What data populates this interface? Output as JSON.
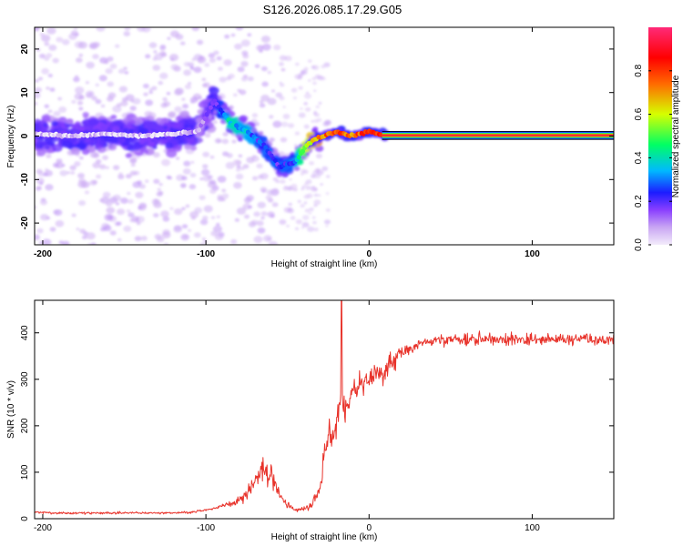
{
  "page_title": "S126.2026.085.17.29.G05",
  "chart_data": [
    {
      "type": "heatmap",
      "xlabel": "Height of straight line (km)",
      "ylabel": "Frequency (Hz)",
      "xlim": [
        -205,
        150
      ],
      "ylim": [
        -25,
        25
      ],
      "xticks": [
        -200,
        -100,
        0,
        100
      ],
      "xtick_labels": [
        "-200",
        "-100",
        "0",
        "100"
      ],
      "yticks": [
        -20,
        -10,
        0,
        10,
        20
      ],
      "ytick_labels": [
        "-20",
        "-10",
        "0",
        "10",
        "20"
      ],
      "colorbar": {
        "label": "Normalized spectral amplitude",
        "range": [
          0,
          1
        ],
        "ticks": [
          0.0,
          0.2,
          0.4,
          0.6,
          0.8
        ],
        "tick_labels": [
          "0.0",
          "0.2",
          "0.4",
          "0.6",
          "0.8"
        ],
        "colors": [
          "#f3ecfb",
          "#c9a6f3",
          "#8a3fff",
          "#1c1cff",
          "#00b9ff",
          "#00ff64",
          "#d6ff00",
          "#ff6a00",
          "#ff0000",
          "#ff2a78"
        ]
      },
      "ridge": {
        "x": [
          -205,
          -180,
          -160,
          -140,
          -120,
          -105,
          -95,
          -85,
          -75,
          -65,
          -55,
          -45,
          -40,
          -35,
          -28,
          -20,
          -10,
          0,
          10,
          50,
          100,
          150
        ],
        "y": [
          0.5,
          0,
          0.5,
          0,
          0.5,
          1,
          8,
          3,
          1,
          -2,
          -7,
          -6,
          -3,
          -1,
          0,
          1,
          0,
          1,
          0.2,
          0.1,
          0.1,
          0.1
        ],
        "amplitude": [
          0.1,
          0.1,
          0.1,
          0.1,
          0.1,
          0.15,
          0.25,
          0.45,
          0.4,
          0.3,
          0.3,
          0.35,
          0.6,
          0.7,
          0.8,
          0.85,
          0.8,
          0.9,
          0.95,
          0.95,
          0.95,
          0.95
        ]
      }
    },
    {
      "type": "line",
      "xlabel": "Height of straight line (km)",
      "ylabel": "SNR (10 * v/v)",
      "xlim": [
        -205,
        150
      ],
      "ylim": [
        0,
        470
      ],
      "xticks": [
        -200,
        -100,
        0,
        100
      ],
      "xtick_labels": [
        "-200",
        "-100",
        "0",
        "100"
      ],
      "yticks": [
        0,
        100,
        200,
        300,
        400
      ],
      "ytick_labels": [
        "0",
        "100",
        "200",
        "300",
        "400"
      ],
      "series": [
        {
          "name": "SNR",
          "color": "#e8332b",
          "x": [
            -205,
            -190,
            -170,
            -150,
            -130,
            -110,
            -100,
            -95,
            -90,
            -85,
            -80,
            -75,
            -70,
            -65,
            -60,
            -55,
            -50,
            -45,
            -40,
            -35,
            -30,
            -28,
            -25,
            -20,
            -18,
            -15,
            -10,
            -5,
            0,
            5,
            10,
            15,
            20,
            25,
            30,
            40,
            50,
            60,
            70,
            80,
            90,
            100,
            110,
            120,
            130,
            140,
            150
          ],
          "y": [
            14,
            12,
            12,
            13,
            12,
            14,
            18,
            22,
            28,
            32,
            38,
            55,
            80,
            110,
            90,
            55,
            30,
            18,
            20,
            30,
            70,
            120,
            170,
            200,
            260,
            230,
            270,
            290,
            300,
            310,
            320,
            340,
            355,
            365,
            375,
            385,
            385,
            385,
            387,
            385,
            386,
            385,
            387,
            385,
            388,
            385,
            385
          ],
          "spike": {
            "x": -17,
            "y": 470
          }
        }
      ]
    }
  ]
}
